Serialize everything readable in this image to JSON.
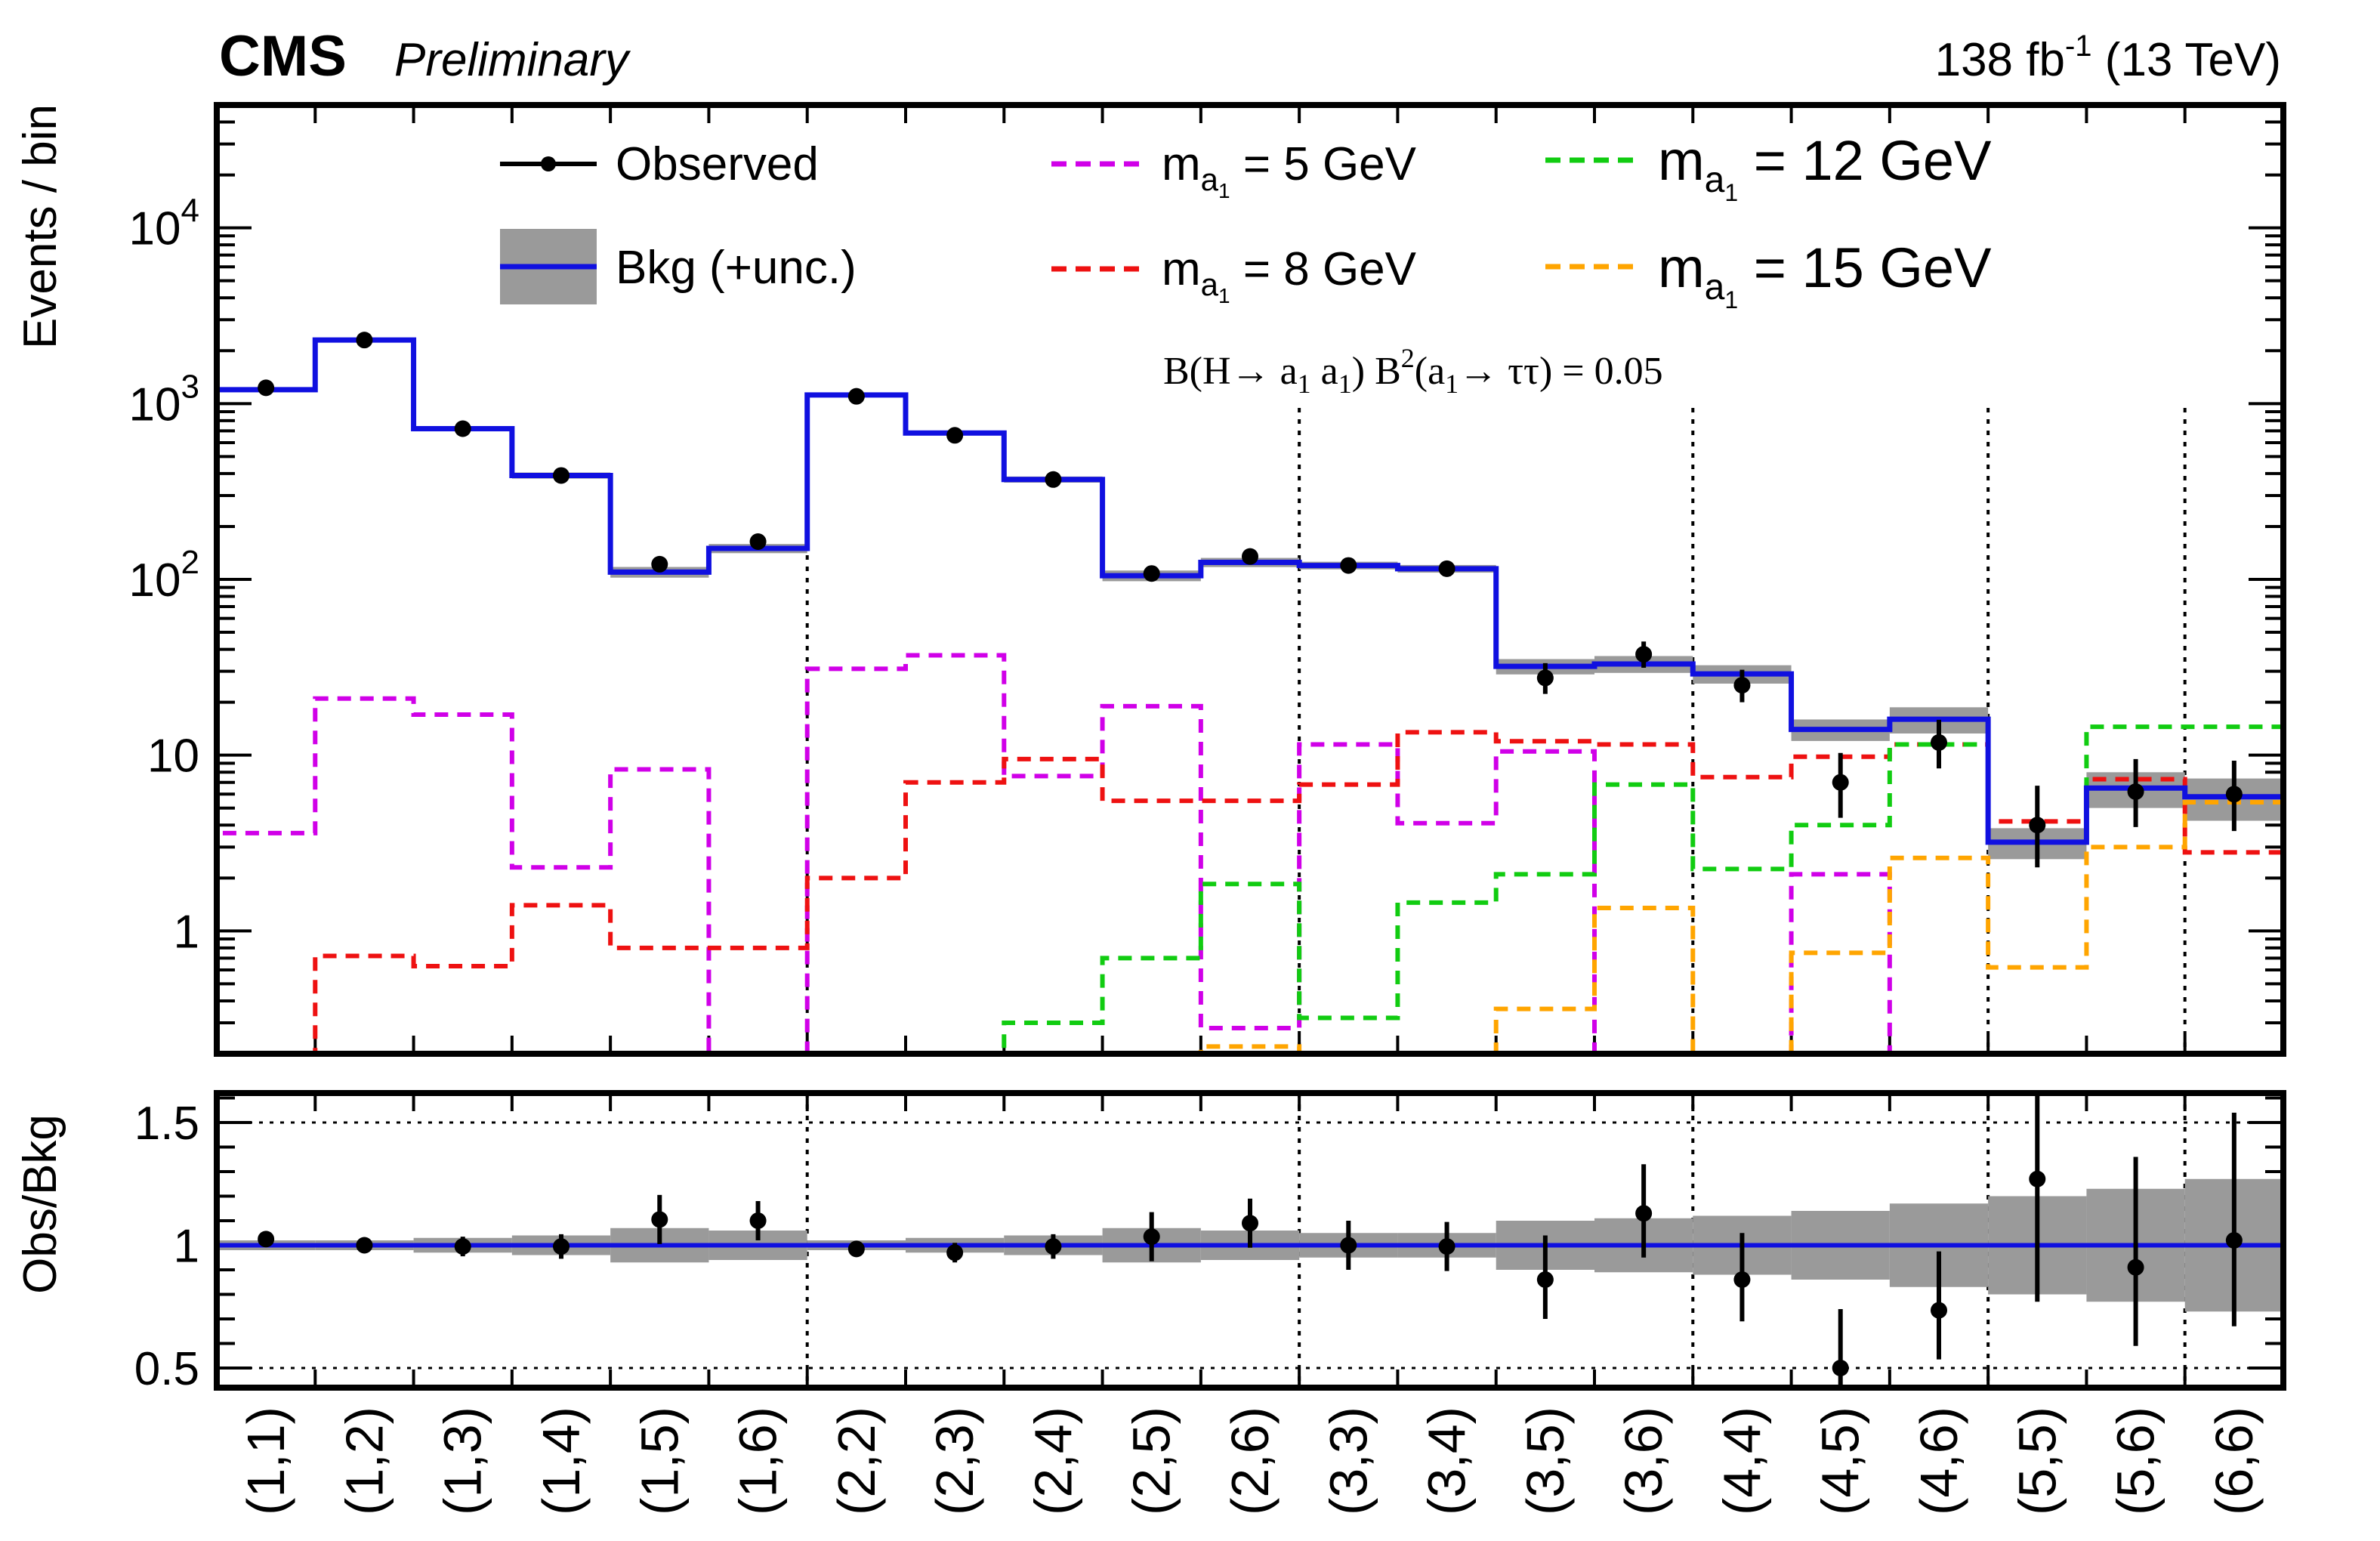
{
  "header": {
    "experiment": "CMS",
    "status": "Preliminary",
    "lumi_value": "138 fb",
    "lumi_exponent": "-1",
    "lumi_energy": "(13 TeV)"
  },
  "annotation": {
    "parts": [
      "B(H",
      "→",
      " a",
      "1",
      " a",
      "1",
      ") B",
      "2",
      "(a",
      "1",
      "→",
      " ττ) = 0.05"
    ]
  },
  "legend": {
    "observed": "Observed",
    "background": "Bkg (+unc.)",
    "signals": [
      {
        "m": "m",
        "sub": "a",
        "subsub": "1",
        "label": " = 5 GeV"
      },
      {
        "m": "m",
        "sub": "a",
        "subsub": "1",
        "label": " = 8 GeV"
      },
      {
        "m": "m",
        "sub": "a",
        "subsub": "1",
        "label": " = 12 GeV"
      },
      {
        "m": "m",
        "sub": "a",
        "subsub": "1",
        "label": " = 15 GeV"
      }
    ]
  },
  "colors": {
    "background_line": "#1010e0",
    "uncertainty_band": "#9a9a9a",
    "observed": "#000000",
    "signal_5": "#d000e8",
    "signal_8": "#ee1111",
    "signal_12": "#11cc11",
    "signal_15": "#ffa500"
  },
  "chart_data": {
    "type": "histogram",
    "title": "",
    "xlabel": "",
    "ylabel": "Events / bin",
    "ratio_ylabel": "Obs/Bkg",
    "yscale": "log",
    "ylim": [
      0.2,
      50000
    ],
    "y_ticks": [
      {
        "value": 1,
        "base": "1",
        "exp": ""
      },
      {
        "value": 10,
        "base": "10",
        "exp": ""
      },
      {
        "value": 100,
        "base": "10",
        "exp": "2"
      },
      {
        "value": 1000,
        "base": "10",
        "exp": "3"
      },
      {
        "value": 10000,
        "base": "10",
        "exp": "4"
      }
    ],
    "ratio_ylim": [
      0.42,
      1.62
    ],
    "ratio_ticks": [
      "0.5",
      "1",
      "1.5"
    ],
    "categories": [
      "(1,1)",
      "(1,2)",
      "(1,3)",
      "(1,4)",
      "(1,5)",
      "(1,6)",
      "(2,2)",
      "(2,3)",
      "(2,4)",
      "(2,5)",
      "(2,6)",
      "(3,3)",
      "(3,4)",
      "(3,5)",
      "(3,6)",
      "(4,4)",
      "(4,5)",
      "(4,6)",
      "(5,5)",
      "(5,6)",
      "(6,6)"
    ],
    "group_boundaries": [
      6,
      11,
      15,
      18,
      20
    ],
    "background": [
      1200,
      2300,
      720,
      390,
      110,
      150,
      1120,
      680,
      370,
      105,
      125,
      120,
      115,
      32,
      33,
      29,
      14,
      16,
      3.2,
      6.5,
      5.8
    ],
    "background_unc": [
      0.02,
      0.02,
      0.03,
      0.04,
      0.07,
      0.06,
      0.02,
      0.03,
      0.04,
      0.07,
      0.06,
      0.05,
      0.05,
      0.1,
      0.11,
      0.12,
      0.14,
      0.17,
      0.2,
      0.23,
      0.27
    ],
    "observed": [
      1230,
      2300,
      720,
      390,
      122,
      164,
      1100,
      660,
      370,
      108,
      135,
      120,
      115,
      27.5,
      37.5,
      25,
      7,
      11.8,
      4,
      6.2,
      6
    ],
    "observed_err_low": [
      35,
      48,
      27,
      20,
      11,
      13,
      33,
      26,
      19,
      10,
      12,
      11,
      11,
      5.2,
      6.1,
      5,
      2.6,
      3.4,
      1.7,
      2.3,
      2.3
    ],
    "observed_err_high": [
      35,
      48,
      27,
      20,
      11,
      13,
      33,
      26,
      19,
      10,
      12,
      11,
      11,
      5.9,
      6.8,
      5.6,
      3.3,
      4.1,
      2.7,
      3.3,
      3.3
    ],
    "ratio": [
      1.025,
      1.0,
      0.995,
      0.995,
      1.105,
      1.1,
      0.985,
      0.97,
      0.995,
      1.035,
      1.09,
      1.0,
      0.995,
      0.86,
      1.13,
      0.86,
      0.5,
      0.735,
      1.27,
      0.91,
      1.02
    ],
    "ratio_err_low": [
      0.03,
      0.02,
      0.04,
      0.05,
      0.1,
      0.08,
      0.03,
      0.04,
      0.05,
      0.1,
      0.1,
      0.1,
      0.1,
      0.16,
      0.18,
      0.17,
      0.2,
      0.2,
      0.5,
      0.32,
      0.35
    ],
    "ratio_err_high": [
      0.03,
      0.02,
      0.04,
      0.05,
      0.1,
      0.08,
      0.03,
      0.04,
      0.05,
      0.1,
      0.1,
      0.1,
      0.1,
      0.18,
      0.2,
      0.19,
      0.24,
      0.24,
      0.5,
      0.45,
      0.52
    ],
    "series": [
      {
        "name": "m_a1 = 5 GeV",
        "color": "#d000e8",
        "values": [
          3.6,
          21,
          17,
          2.3,
          8.3,
          0.0,
          31,
          37,
          7.6,
          19,
          0.28,
          11.5,
          4.1,
          10.5,
          0.0,
          0.0,
          2.1,
          0.0,
          0.0,
          0.0,
          0.0
        ],
        "y_first_edge": 0.2
      },
      {
        "name": "m_a1 = 8 GeV",
        "color": "#ee1111",
        "values": [
          0.0,
          0.72,
          0.63,
          1.4,
          0.8,
          0.8,
          2.0,
          7.0,
          9.5,
          5.5,
          5.5,
          6.8,
          13.5,
          12.0,
          11.5,
          7.5,
          9.8,
          11.5,
          4.2,
          7.3,
          2.8
        ],
        "y_first_edge": 0.2
      },
      {
        "name": "m_a1 = 12 GeV",
        "color": "#11cc11",
        "values": [
          0.0,
          0.0,
          0.0,
          0.0,
          0.0,
          0.0,
          0.0,
          0.0,
          0.3,
          0.7,
          1.85,
          0.32,
          1.45,
          2.1,
          6.8,
          2.25,
          4.0,
          11.5,
          3.2,
          14.5,
          14.5
        ],
        "y_first_edge": 0.2
      },
      {
        "name": "m_a1 = 15 GeV",
        "color": "#ffa500",
        "values": [
          0.2,
          0.2,
          0.2,
          0.2,
          0.2,
          0.2,
          0.2,
          0.2,
          0.2,
          0.2,
          0.22,
          0.2,
          0.2,
          0.36,
          1.35,
          0.2,
          0.75,
          2.6,
          0.62,
          3.0,
          5.4
        ],
        "y_first_edge": 0.2
      }
    ]
  }
}
